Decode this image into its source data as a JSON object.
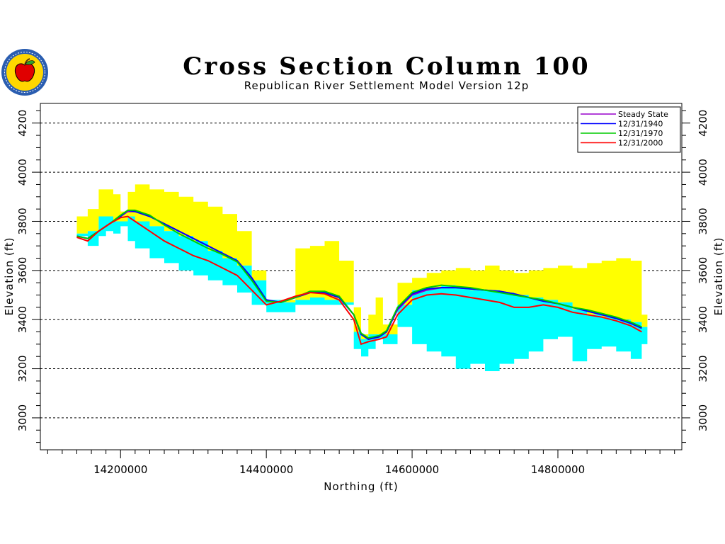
{
  "chart_data": {
    "type": "area",
    "title": "Cross Section Column 100",
    "subtitle": "Republican River Settlement Model Version 12p",
    "xlabel": "Northing (ft)",
    "ylabel": "Elevation (ft)",
    "xlim": [
      14090000,
      14970000
    ],
    "ylim": [
      2870000,
      4280000
    ],
    "y_range_ft": [
      2870,
      4280
    ],
    "x_tick_labels": [
      "14200000",
      "14400000",
      "14600000",
      "14800000"
    ],
    "x_ticks": [
      14200000,
      14400000,
      14600000,
      14800000
    ],
    "y_tick_labels": [
      "3000",
      "3200",
      "3400",
      "3600",
      "3800",
      "4000",
      "4200"
    ],
    "y_ticks": [
      3000,
      3200,
      3400,
      3600,
      3800,
      4000,
      4200
    ],
    "grid": "dashed horizontal at major y ticks",
    "legend_position": "top-right",
    "colors": {
      "layer1_fill": "#ffff00",
      "layer2_fill": "#00ffff",
      "grid": "#000000",
      "axes": "#000000"
    },
    "layers": {
      "x": [
        14140000,
        14155000,
        14170000,
        14180000,
        14190000,
        14200000,
        14210000,
        14220000,
        14240000,
        14260000,
        14280000,
        14300000,
        14320000,
        14340000,
        14360000,
        14380000,
        14400000,
        14420000,
        14440000,
        14460000,
        14480000,
        14500000,
        14520000,
        14530000,
        14540000,
        14550000,
        14560000,
        14580000,
        14600000,
        14620000,
        14640000,
        14660000,
        14680000,
        14700000,
        14720000,
        14740000,
        14760000,
        14780000,
        14800000,
        14820000,
        14840000,
        14860000,
        14880000,
        14900000,
        14915000
      ],
      "top_surface": [
        3820,
        3850,
        3930,
        3930,
        3910,
        3840,
        3920,
        3950,
        3930,
        3920,
        3900,
        3880,
        3860,
        3830,
        3760,
        3600,
        3480,
        3480,
        3690,
        3700,
        3720,
        3640,
        3450,
        3340,
        3420,
        3490,
        3380,
        3550,
        3570,
        3590,
        3600,
        3610,
        3600,
        3620,
        3600,
        3590,
        3600,
        3610,
        3620,
        3610,
        3630,
        3640,
        3650,
        3640,
        3420
      ],
      "layer1_bottom": [
        3750,
        3760,
        3820,
        3820,
        3800,
        3800,
        3820,
        3800,
        3780,
        3760,
        3740,
        3720,
        3680,
        3650,
        3620,
        3560,
        3480,
        3470,
        3480,
        3490,
        3480,
        3470,
        3350,
        3320,
        3340,
        3340,
        3340,
        3460,
        3520,
        3530,
        3540,
        3530,
        3520,
        3520,
        3510,
        3500,
        3490,
        3480,
        3470,
        3440,
        3420,
        3410,
        3400,
        3390,
        3370
      ],
      "model_bottom": [
        3740,
        3700,
        3740,
        3760,
        3750,
        3780,
        3720,
        3690,
        3650,
        3630,
        3600,
        3580,
        3560,
        3540,
        3510,
        3460,
        3430,
        3430,
        3460,
        3460,
        3460,
        3460,
        3280,
        3250,
        3280,
        3320,
        3300,
        3370,
        3300,
        3270,
        3250,
        3200,
        3220,
        3190,
        3220,
        3240,
        3270,
        3320,
        3330,
        3230,
        3280,
        3290,
        3270,
        3240,
        3300
      ]
    },
    "series": [
      {
        "name": "Steady State",
        "color": "#9900cc",
        "x": [
          14140000,
          14155000,
          14170000,
          14185000,
          14200000,
          14210000,
          14220000,
          14240000,
          14260000,
          14280000,
          14300000,
          14320000,
          14340000,
          14360000,
          14380000,
          14400000,
          14420000,
          14440000,
          14460000,
          14480000,
          14500000,
          14520000,
          14530000,
          14540000,
          14555000,
          14565000,
          14580000,
          14600000,
          14620000,
          14640000,
          14660000,
          14680000,
          14700000,
          14720000,
          14740000,
          14760000,
          14780000,
          14800000,
          14820000,
          14840000,
          14860000,
          14880000,
          14900000,
          14915000
        ],
        "values": [
          3740,
          3730,
          3760,
          3790,
          3820,
          3840,
          3840,
          3820,
          3790,
          3760,
          3730,
          3700,
          3670,
          3640,
          3570,
          3480,
          3470,
          3490,
          3510,
          3510,
          3490,
          3420,
          3340,
          3320,
          3330,
          3350,
          3440,
          3500,
          3520,
          3530,
          3530,
          3525,
          3520,
          3515,
          3505,
          3490,
          3475,
          3465,
          3450,
          3435,
          3420,
          3405,
          3385,
          3365
        ]
      },
      {
        "name": "12/31/1940",
        "color": "#0000ff",
        "x": [
          14140000,
          14155000,
          14170000,
          14185000,
          14200000,
          14210000,
          14220000,
          14240000,
          14260000,
          14280000,
          14300000,
          14320000,
          14340000,
          14360000,
          14380000,
          14400000,
          14420000,
          14440000,
          14460000,
          14480000,
          14500000,
          14520000,
          14530000,
          14540000,
          14555000,
          14565000,
          14580000,
          14600000,
          14620000,
          14640000,
          14660000,
          14680000,
          14700000,
          14720000,
          14740000,
          14760000,
          14780000,
          14800000,
          14820000,
          14840000,
          14860000,
          14880000,
          14900000,
          14915000
        ],
        "values": [
          3740,
          3730,
          3760,
          3790,
          3820,
          3845,
          3840,
          3820,
          3790,
          3760,
          3730,
          3700,
          3670,
          3640,
          3570,
          3480,
          3470,
          3490,
          3510,
          3510,
          3490,
          3420,
          3340,
          3320,
          3330,
          3350,
          3445,
          3505,
          3525,
          3530,
          3530,
          3525,
          3520,
          3515,
          3505,
          3490,
          3475,
          3465,
          3450,
          3435,
          3420,
          3405,
          3385,
          3365
        ]
      },
      {
        "name": "12/31/1970",
        "color": "#00cc00",
        "x": [
          14140000,
          14155000,
          14170000,
          14185000,
          14200000,
          14210000,
          14220000,
          14240000,
          14260000,
          14280000,
          14300000,
          14320000,
          14340000,
          14360000,
          14380000,
          14400000,
          14420000,
          14440000,
          14460000,
          14480000,
          14500000,
          14520000,
          14530000,
          14540000,
          14555000,
          14565000,
          14580000,
          14600000,
          14620000,
          14640000,
          14660000,
          14680000,
          14700000,
          14720000,
          14740000,
          14760000,
          14780000,
          14800000,
          14820000,
          14840000,
          14860000,
          14880000,
          14900000,
          14915000
        ],
        "values": [
          3740,
          3730,
          3760,
          3790,
          3825,
          3845,
          3845,
          3825,
          3785,
          3750,
          3720,
          3690,
          3665,
          3635,
          3560,
          3475,
          3470,
          3490,
          3515,
          3515,
          3495,
          3420,
          3345,
          3325,
          3335,
          3355,
          3450,
          3510,
          3530,
          3540,
          3535,
          3530,
          3520,
          3510,
          3500,
          3490,
          3480,
          3465,
          3450,
          3440,
          3425,
          3410,
          3390,
          3370
        ]
      },
      {
        "name": "12/31/2000",
        "color": "#ff0000",
        "x": [
          14140000,
          14155000,
          14170000,
          14185000,
          14200000,
          14210000,
          14220000,
          14240000,
          14260000,
          14280000,
          14300000,
          14320000,
          14340000,
          14360000,
          14380000,
          14400000,
          14420000,
          14440000,
          14460000,
          14480000,
          14500000,
          14520000,
          14530000,
          14540000,
          14555000,
          14565000,
          14580000,
          14600000,
          14620000,
          14640000,
          14660000,
          14680000,
          14700000,
          14720000,
          14740000,
          14760000,
          14780000,
          14800000,
          14820000,
          14840000,
          14860000,
          14880000,
          14900000,
          14915000
        ],
        "values": [
          3735,
          3720,
          3760,
          3790,
          3815,
          3820,
          3800,
          3760,
          3720,
          3690,
          3660,
          3640,
          3610,
          3580,
          3520,
          3460,
          3475,
          3495,
          3510,
          3505,
          3480,
          3400,
          3300,
          3310,
          3320,
          3330,
          3420,
          3480,
          3500,
          3505,
          3500,
          3490,
          3480,
          3470,
          3450,
          3450,
          3460,
          3450,
          3430,
          3420,
          3410,
          3395,
          3375,
          3350
        ]
      }
    ]
  },
  "logo": {
    "name": "nebraska-seal",
    "colors": {
      "ring": "#2a5db0",
      "inner": "#ffd700",
      "apple": "#e00000",
      "leaf": "#2f9e2f"
    }
  }
}
